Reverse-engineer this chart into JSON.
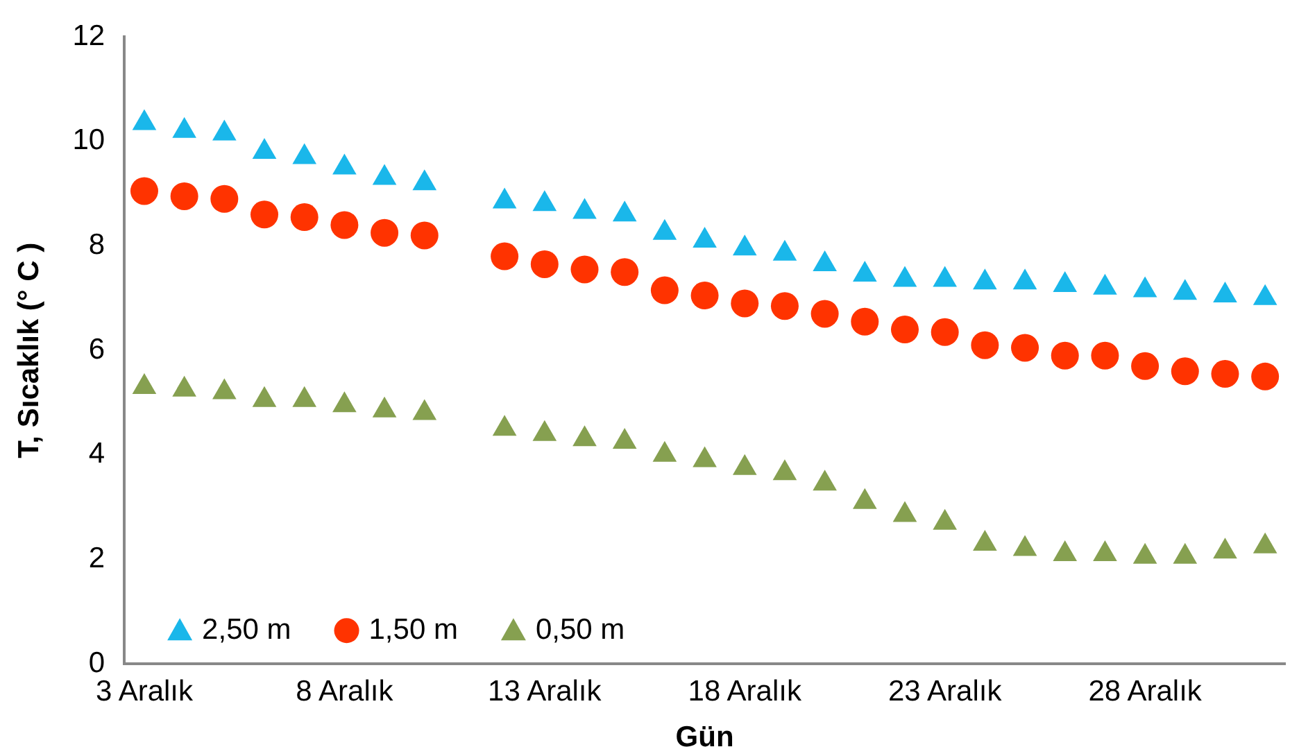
{
  "chart_data": {
    "type": "scatter",
    "xlabel": "Gün",
    "ylabel": "T, Sıcaklık (° C )",
    "categories": [
      "3 Aralık",
      null,
      null,
      null,
      null,
      "8 Aralık",
      null,
      null,
      null,
      null,
      "13 Aralık",
      null,
      null,
      null,
      null,
      "18 Aralık",
      null,
      null,
      null,
      null,
      "23 Aralık",
      null,
      null,
      null,
      null,
      "28 Aralık",
      null,
      null,
      null
    ],
    "series": [
      {
        "name": "2,50 m",
        "color": "#1ab7ea",
        "marker": "triangle",
        "values": [
          10.35,
          10.2,
          10.15,
          9.8,
          9.7,
          9.5,
          9.3,
          9.2,
          null,
          8.85,
          8.8,
          8.65,
          8.6,
          8.25,
          8.1,
          7.95,
          7.85,
          7.65,
          7.45,
          7.35,
          7.35,
          7.3,
          7.3,
          7.25,
          7.2,
          7.15,
          7.1,
          7.05,
          7.0
        ]
      },
      {
        "name": "1,50 m",
        "color": "#ff3300",
        "marker": "circle",
        "values": [
          9.05,
          8.95,
          8.9,
          8.6,
          8.55,
          8.4,
          8.25,
          8.2,
          null,
          7.8,
          7.65,
          7.55,
          7.5,
          7.15,
          7.05,
          6.9,
          6.85,
          6.7,
          6.55,
          6.4,
          6.35,
          6.1,
          6.05,
          5.9,
          5.9,
          5.7,
          5.6,
          5.55,
          5.5
        ]
      },
      {
        "name": "0,50 m",
        "color": "#86a050",
        "marker": "triangle",
        "values": [
          5.3,
          5.25,
          5.2,
          5.05,
          5.05,
          4.95,
          4.85,
          4.8,
          null,
          4.5,
          4.4,
          4.3,
          4.25,
          4.0,
          3.9,
          3.75,
          3.65,
          3.45,
          3.1,
          2.85,
          2.7,
          2.3,
          2.2,
          2.1,
          2.1,
          2.05,
          2.05,
          2.15,
          2.25
        ]
      }
    ],
    "ylim": [
      0,
      12
    ],
    "yticks": [
      0,
      2,
      4,
      6,
      8,
      10,
      12
    ],
    "grid": false,
    "legend": "bottom left"
  }
}
